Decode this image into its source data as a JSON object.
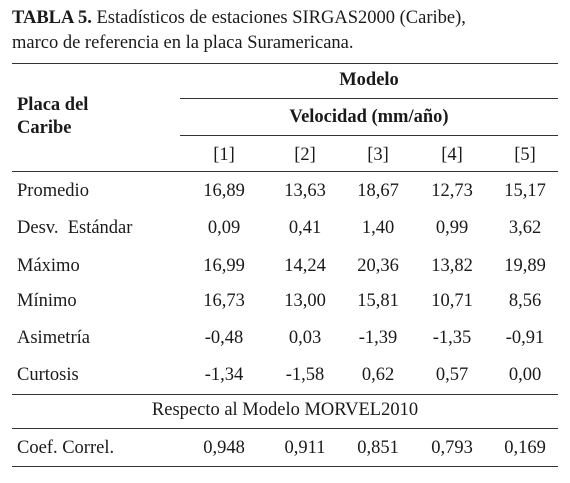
{
  "caption": {
    "label": "TABLA 5.",
    "text_line1": " Estadísticos de estaciones SIRGAS2000 (Caribe),",
    "text_line2": "marco de referencia en la placa Suramericana."
  },
  "table": {
    "row_header_line1": "Placa del",
    "row_header_line2": "Caribe",
    "group_header": "Modelo",
    "sub_header": "Velocidad (mm/año)",
    "columns": [
      "[1]",
      "[2]",
      "[3]",
      "[4]",
      "[5]"
    ],
    "rows": [
      {
        "label": "Promedio",
        "values": [
          "16,89",
          "13,63",
          "18,67",
          "12,73",
          "15,17"
        ]
      },
      {
        "label": "Desv.  Estándar",
        "values": [
          "0,09",
          "0,41",
          "1,40",
          "0,99",
          "3,62"
        ]
      },
      {
        "label": "Máximo",
        "values": [
          "16,99",
          "14,24",
          "20,36",
          "13,82",
          "19,89"
        ]
      },
      {
        "label": "Mínimo",
        "values": [
          "16,73",
          "13,00",
          "15,81",
          "10,71",
          "8,56"
        ]
      },
      {
        "label": "Asimetría",
        "values": [
          "-0,48",
          "0,03",
          "-1,39",
          "-1,35",
          "-0,91"
        ]
      },
      {
        "label": "Curtosis",
        "values": [
          "-1,34",
          "-1,58",
          "0,62",
          "0,57",
          "0,00"
        ]
      }
    ],
    "section_header": "Respecto al Modelo MORVEL2010",
    "footer_row": {
      "label": "Coef. Correl.",
      "values": [
        "0,948",
        "0,911",
        "0,851",
        "0,793",
        "0,169"
      ]
    }
  }
}
